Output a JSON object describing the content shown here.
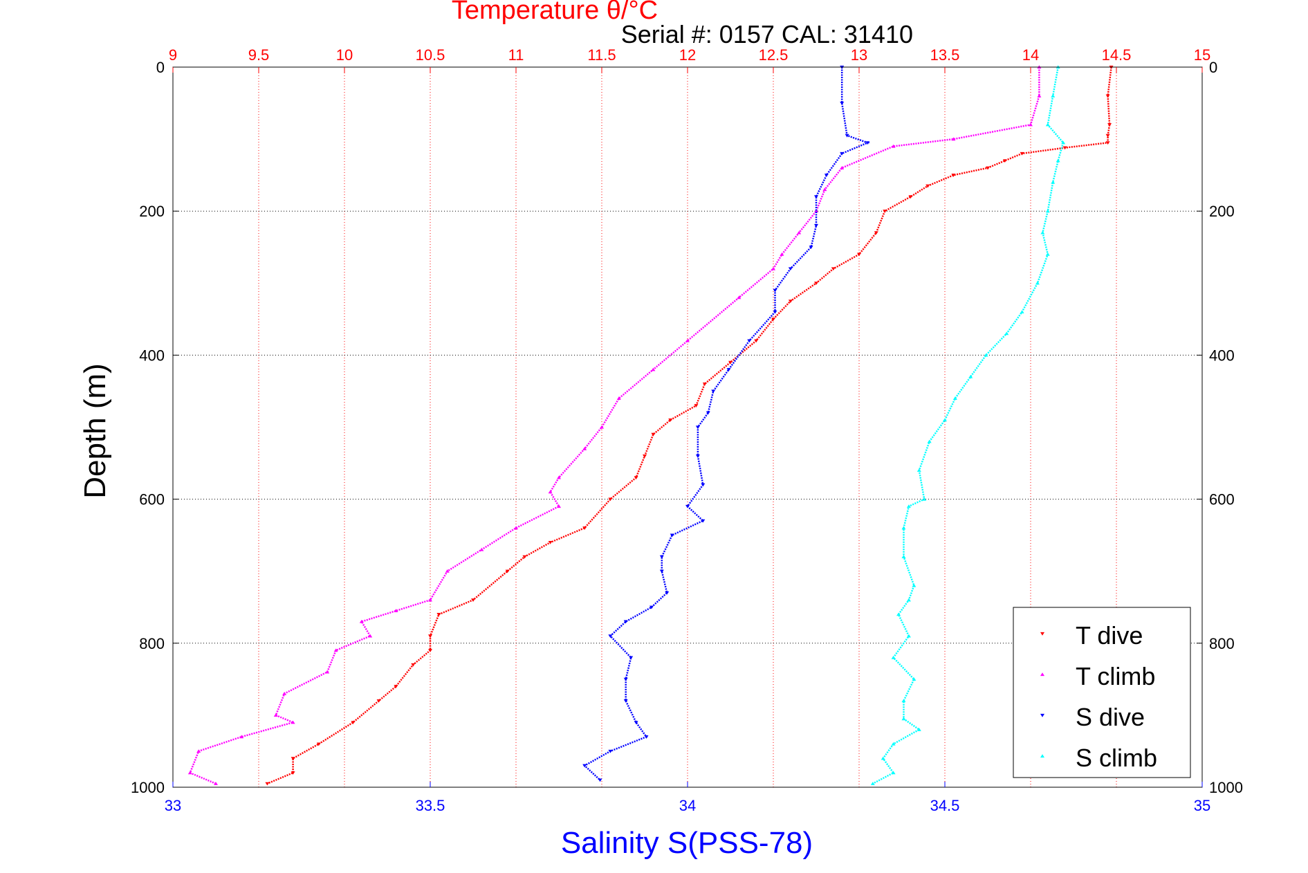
{
  "chart_data": {
    "type": "scatter",
    "title_top": "Temperature θ/°C",
    "subtitle": "Serial #: 0157  CAL: 31410",
    "xlabel_bottom": "Salinity S(PSS-78)",
    "ylabel": "Depth (m)",
    "x_top": {
      "range": [
        9,
        15
      ],
      "ticks": [
        "9",
        "9.5",
        "10",
        "10.5",
        "11",
        "11.5",
        "12",
        "12.5",
        "13",
        "13.5",
        "14",
        "14.5",
        "15"
      ],
      "color": "#ff0000"
    },
    "x_bottom": {
      "range": [
        33,
        35
      ],
      "ticks": [
        "33",
        "33.5",
        "34",
        "34.5",
        "35"
      ],
      "color": "#0000ff"
    },
    "y": {
      "range": [
        0,
        1000
      ],
      "reversed": true,
      "ticks": [
        "0",
        "200",
        "400",
        "600",
        "800",
        "1000"
      ]
    },
    "grid": true,
    "legend_position": "bottom-right",
    "series": [
      {
        "name": "T dive",
        "axis": "top",
        "color": "#ff0000",
        "marker": "triangle-down",
        "x": [
          14.47,
          14.45,
          14.46,
          14.45,
          14.45,
          14.2,
          13.95,
          13.85,
          13.75,
          13.55,
          13.4,
          13.3,
          13.15,
          13.1,
          13.0,
          12.85,
          12.75,
          12.6,
          12.5,
          12.4,
          12.25,
          12.1,
          12.05,
          11.9,
          11.8,
          11.75,
          11.7,
          11.55,
          11.4,
          11.2,
          11.05,
          10.95,
          10.75,
          10.55,
          10.5,
          10.5,
          10.4,
          10.3,
          10.2,
          10.05,
          9.85,
          9.7,
          9.7,
          9.55
        ],
        "y": [
          0,
          40,
          80,
          95,
          105,
          112,
          120,
          130,
          140,
          150,
          165,
          180,
          200,
          230,
          260,
          280,
          300,
          325,
          350,
          380,
          410,
          440,
          470,
          490,
          510,
          540,
          570,
          600,
          640,
          660,
          680,
          700,
          740,
          760,
          790,
          810,
          830,
          860,
          880,
          910,
          940,
          960,
          980,
          995
        ]
      },
      {
        "name": "T climb",
        "axis": "top",
        "color": "#ff00ff",
        "marker": "triangle-up",
        "x": [
          14.05,
          14.05,
          14.0,
          13.55,
          13.2,
          12.9,
          12.8,
          12.75,
          12.65,
          12.55,
          12.5,
          12.3,
          12.0,
          11.8,
          11.6,
          11.5,
          11.4,
          11.25,
          11.2,
          11.25,
          11.0,
          10.8,
          10.6,
          10.5,
          10.3,
          10.1,
          10.15,
          9.95,
          9.9,
          9.65,
          9.6,
          9.7,
          9.4,
          9.15,
          9.1,
          9.25
        ],
        "y": [
          0,
          40,
          80,
          100,
          110,
          140,
          170,
          200,
          230,
          260,
          280,
          320,
          380,
          420,
          460,
          500,
          530,
          570,
          590,
          610,
          640,
          670,
          700,
          740,
          755,
          770,
          790,
          810,
          840,
          870,
          900,
          910,
          930,
          950,
          980,
          995
        ]
      },
      {
        "name": "S dive",
        "axis": "bottom",
        "color": "#0000ff",
        "marker": "triangle-down",
        "x": [
          34.3,
          34.3,
          34.31,
          34.35,
          34.3,
          34.27,
          34.25,
          34.25,
          34.24,
          34.2,
          34.17,
          34.17,
          34.12,
          34.08,
          34.05,
          34.04,
          34.02,
          34.02,
          34.03,
          34.0,
          34.03,
          33.97,
          33.95,
          33.95,
          33.96,
          33.93,
          33.88,
          33.85,
          33.89,
          33.88,
          33.88,
          33.9,
          33.92,
          33.85,
          33.8,
          33.83
        ],
        "y": [
          0,
          50,
          95,
          105,
          120,
          150,
          180,
          220,
          250,
          280,
          310,
          340,
          380,
          420,
          450,
          480,
          500,
          540,
          580,
          610,
          630,
          650,
          680,
          700,
          730,
          750,
          770,
          790,
          820,
          850,
          880,
          910,
          930,
          950,
          970,
          990
        ]
      },
      {
        "name": "S climb",
        "axis": "bottom",
        "color": "#00ffff",
        "marker": "triangle-up",
        "x": [
          34.72,
          34.71,
          34.7,
          34.73,
          34.72,
          34.71,
          34.7,
          34.69,
          34.7,
          34.68,
          34.65,
          34.62,
          34.58,
          34.55,
          34.52,
          34.5,
          34.47,
          34.45,
          34.46,
          34.43,
          34.42,
          34.42,
          34.44,
          34.43,
          34.41,
          34.43,
          34.4,
          34.44,
          34.42,
          34.42,
          34.45,
          34.4,
          34.38,
          34.4,
          34.36
        ],
        "y": [
          0,
          40,
          80,
          105,
          130,
          160,
          200,
          230,
          260,
          300,
          340,
          370,
          400,
          430,
          460,
          490,
          520,
          560,
          600,
          610,
          640,
          680,
          720,
          740,
          760,
          790,
          820,
          850,
          880,
          905,
          920,
          940,
          960,
          980,
          995
        ]
      }
    ],
    "legend": [
      "T dive",
      "T climb",
      "S dive",
      "S climb"
    ]
  }
}
